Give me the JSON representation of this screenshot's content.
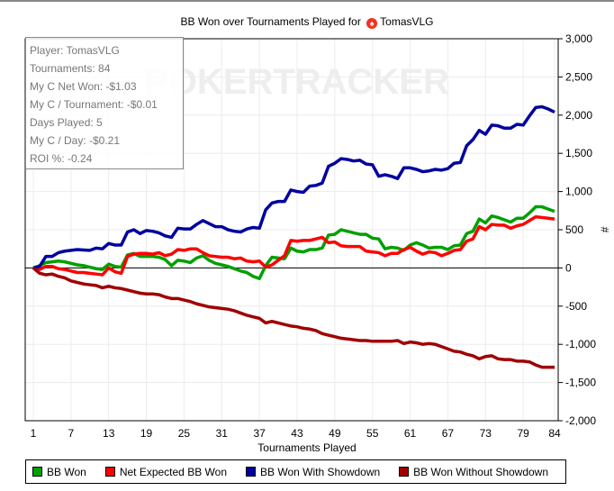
{
  "title": {
    "text": "BB Won over Tournaments Played for",
    "player": "TomasVLG",
    "icon": "pokerstars-spade-icon"
  },
  "watermark": "POKERTRACKER",
  "stats": [
    "Player: TomasVLG",
    "Tournaments: 84",
    "My C Net Won: -$1.03",
    "My C / Tournament: -$0.01",
    "Days Played: 5",
    "My C / Day: -$0.21",
    "ROI %: -0.24"
  ],
  "chart_data": {
    "type": "line",
    "title": "BB Won over Tournaments Played for TomasVLG",
    "xlabel": "Tournaments Played",
    "ylabel": "#",
    "xlim": [
      1,
      84
    ],
    "ylim": [
      -2000,
      3000
    ],
    "x_ticks": [
      1,
      7,
      13,
      19,
      25,
      31,
      37,
      43,
      49,
      55,
      61,
      67,
      73,
      79,
      84
    ],
    "y_ticks": [
      3000,
      2500,
      2000,
      1500,
      1000,
      500,
      0,
      -500,
      -1000,
      -1500,
      -2000
    ],
    "y_tick_labels": [
      "3,000",
      "2,500",
      "2,000",
      "1,500",
      "1,000",
      "500",
      "0",
      "-500",
      "-1,000",
      "-1,500",
      "-2,000"
    ],
    "y_axis_side": "right",
    "grid": true,
    "legend": "bottom",
    "series": [
      {
        "name": "BB Won",
        "color": "#00a000",
        "values": [
          0,
          30,
          70,
          80,
          90,
          80,
          60,
          40,
          30,
          10,
          -10,
          -20,
          50,
          20,
          10,
          170,
          190,
          150,
          150,
          150,
          140,
          110,
          30,
          100,
          90,
          70,
          130,
          160,
          100,
          60,
          40,
          20,
          -10,
          -40,
          -60,
          -110,
          -140,
          30,
          140,
          130,
          120,
          260,
          220,
          210,
          240,
          240,
          260,
          430,
          440,
          500,
          480,
          460,
          440,
          440,
          390,
          380,
          250,
          270,
          260,
          230,
          300,
          330,
          300,
          260,
          270,
          270,
          240,
          290,
          300,
          450,
          480,
          640,
          590,
          680,
          660,
          630,
          600,
          650,
          650,
          720,
          800,
          800,
          770,
          740
        ]
      },
      {
        "name": "Net Expected BB Won",
        "color": "#ff0000",
        "values": [
          0,
          -20,
          20,
          20,
          -10,
          -20,
          -40,
          -60,
          -60,
          -70,
          -80,
          -90,
          0,
          -50,
          -70,
          150,
          180,
          190,
          190,
          180,
          200,
          160,
          180,
          240,
          230,
          250,
          250,
          200,
          160,
          150,
          140,
          140,
          120,
          130,
          90,
          80,
          90,
          10,
          40,
          100,
          160,
          360,
          350,
          360,
          360,
          380,
          400,
          330,
          340,
          290,
          280,
          280,
          280,
          220,
          210,
          200,
          160,
          190,
          190,
          240,
          270,
          220,
          180,
          210,
          200,
          160,
          190,
          230,
          240,
          350,
          380,
          540,
          500,
          570,
          560,
          560,
          520,
          550,
          570,
          620,
          670,
          660,
          650,
          640
        ]
      },
      {
        "name": "BB Won With Showdown",
        "color": "#0000a0",
        "values": [
          0,
          20,
          150,
          150,
          200,
          220,
          230,
          240,
          235,
          230,
          260,
          250,
          320,
          300,
          300,
          470,
          500,
          450,
          490,
          480,
          460,
          420,
          400,
          520,
          510,
          510,
          570,
          620,
          580,
          540,
          540,
          500,
          480,
          470,
          510,
          530,
          520,
          760,
          850,
          870,
          870,
          1020,
          1000,
          990,
          1070,
          1080,
          1110,
          1330,
          1370,
          1430,
          1420,
          1400,
          1410,
          1360,
          1350,
          1200,
          1220,
          1200,
          1170,
          1310,
          1310,
          1290,
          1260,
          1270,
          1290,
          1280,
          1300,
          1370,
          1380,
          1600,
          1680,
          1800,
          1750,
          1870,
          1860,
          1830,
          1830,
          1880,
          1870,
          1990,
          2100,
          2110,
          2080,
          2040
        ]
      },
      {
        "name": "BB Won Without Showdown",
        "color": "#a00000",
        "values": [
          0,
          -70,
          -90,
          -80,
          -110,
          -130,
          -170,
          -190,
          -210,
          -220,
          -230,
          -260,
          -240,
          -260,
          -270,
          -290,
          -310,
          -330,
          -340,
          -340,
          -350,
          -380,
          -400,
          -400,
          -420,
          -440,
          -470,
          -490,
          -510,
          -520,
          -530,
          -540,
          -560,
          -590,
          -620,
          -640,
          -660,
          -720,
          -700,
          -720,
          -740,
          -760,
          -770,
          -790,
          -800,
          -820,
          -860,
          -880,
          -900,
          -920,
          -930,
          -940,
          -950,
          -950,
          -960,
          -960,
          -960,
          -960,
          -950,
          -990,
          -970,
          -980,
          -1000,
          -990,
          -1000,
          -1030,
          -1060,
          -1090,
          -1100,
          -1130,
          -1150,
          -1190,
          -1160,
          -1150,
          -1190,
          -1200,
          -1200,
          -1220,
          -1220,
          -1230,
          -1270,
          -1300,
          -1300,
          -1300
        ]
      }
    ]
  }
}
